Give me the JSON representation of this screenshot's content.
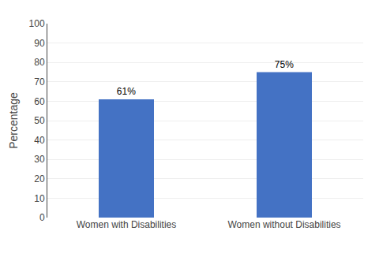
{
  "chart_data": {
    "type": "bar",
    "categories": [
      "Women with Disabilities",
      "Women without Disabilities"
    ],
    "values": [
      61,
      75
    ],
    "value_labels": [
      "61%",
      "75%"
    ],
    "data_labels": true,
    "color": "#4472C4",
    "ylabel": "Percentage",
    "ylim": [
      0,
      100
    ],
    "yticks": [
      0,
      10,
      20,
      30,
      40,
      50,
      60,
      70,
      80,
      90,
      100
    ],
    "grid": true
  }
}
